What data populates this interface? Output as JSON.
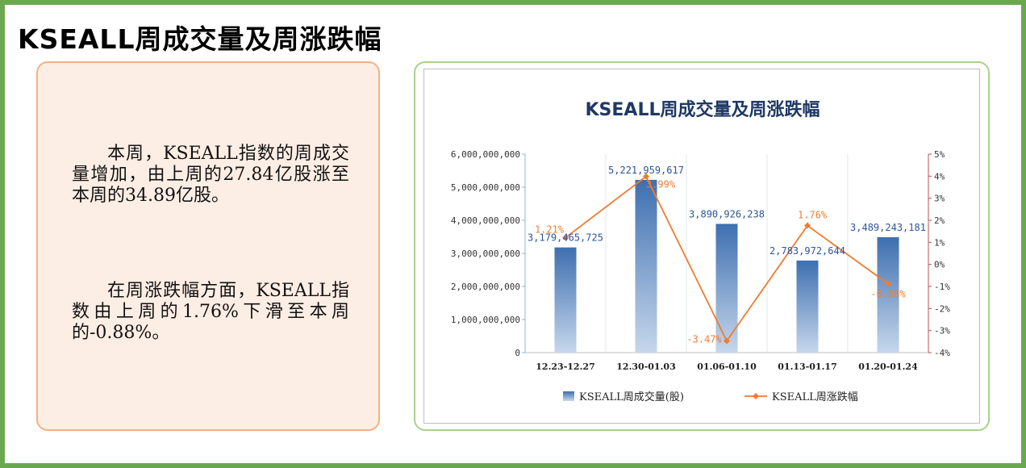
{
  "header": {
    "title": "KSEALL周成交量及周涨跌幅"
  },
  "summary": {
    "paragraph1": "本周，KSEALL指数的周成交量增加，由上周的27.84亿股涨至本周的34.89亿股。",
    "paragraph2": "在周涨跌幅方面，KSEALL指数由上周的1.76%下滑至本周的-0.88%。"
  },
  "colors": {
    "bar": "#4f81bd",
    "line": "#ed7d31",
    "frame": "#6aa84f",
    "text_card_border": "#f4b183",
    "chart_card_border": "#a9d18e",
    "title": "#1f3864"
  },
  "chart_data": {
    "type": "bar+line",
    "title": "KSEALL周成交量及周涨跌幅",
    "categories": [
      "12.23-12.27",
      "12.30-01.03",
      "01.06-01.10",
      "01.13-01.17",
      "01.20-01.24"
    ],
    "series": [
      {
        "name": "KSEALL周成交量(股)",
        "type": "bar",
        "axis": "left",
        "values": [
          3179465725,
          5221959617,
          3890926238,
          2783972644,
          3489243181
        ],
        "labels": [
          "3,179,465,725",
          "5,221,959,617",
          "3,890,926,238",
          "2,783,972,644",
          "3,489,243,181"
        ]
      },
      {
        "name": "KSEALL周涨跌幅",
        "type": "line",
        "axis": "right",
        "values": [
          1.21,
          3.99,
          -3.47,
          1.76,
          -0.88
        ],
        "labels": [
          "1.21%",
          "3.99%",
          "-3.47%",
          "1.76%",
          "-0.88%"
        ]
      }
    ],
    "y_left": {
      "range": [
        0,
        6000000000
      ],
      "ticks": [
        0,
        1000000000,
        2000000000,
        3000000000,
        4000000000,
        5000000000,
        6000000000
      ],
      "tick_labels": [
        "0",
        "1,000,000,000",
        "2,000,000,000",
        "3,000,000,000",
        "4,000,000,000",
        "5,000,000,000",
        "6,000,000,000"
      ]
    },
    "y_right": {
      "range": [
        -4,
        5
      ],
      "ticks": [
        -4,
        -3,
        -2,
        -1,
        0,
        1,
        2,
        3,
        4,
        5
      ],
      "tick_labels": [
        "-4%",
        "-3%",
        "-2%",
        "-1%",
        "0%",
        "1%",
        "2%",
        "3%",
        "4%",
        "5%"
      ]
    },
    "grid": "vertical category separators",
    "legend": "bottom"
  }
}
